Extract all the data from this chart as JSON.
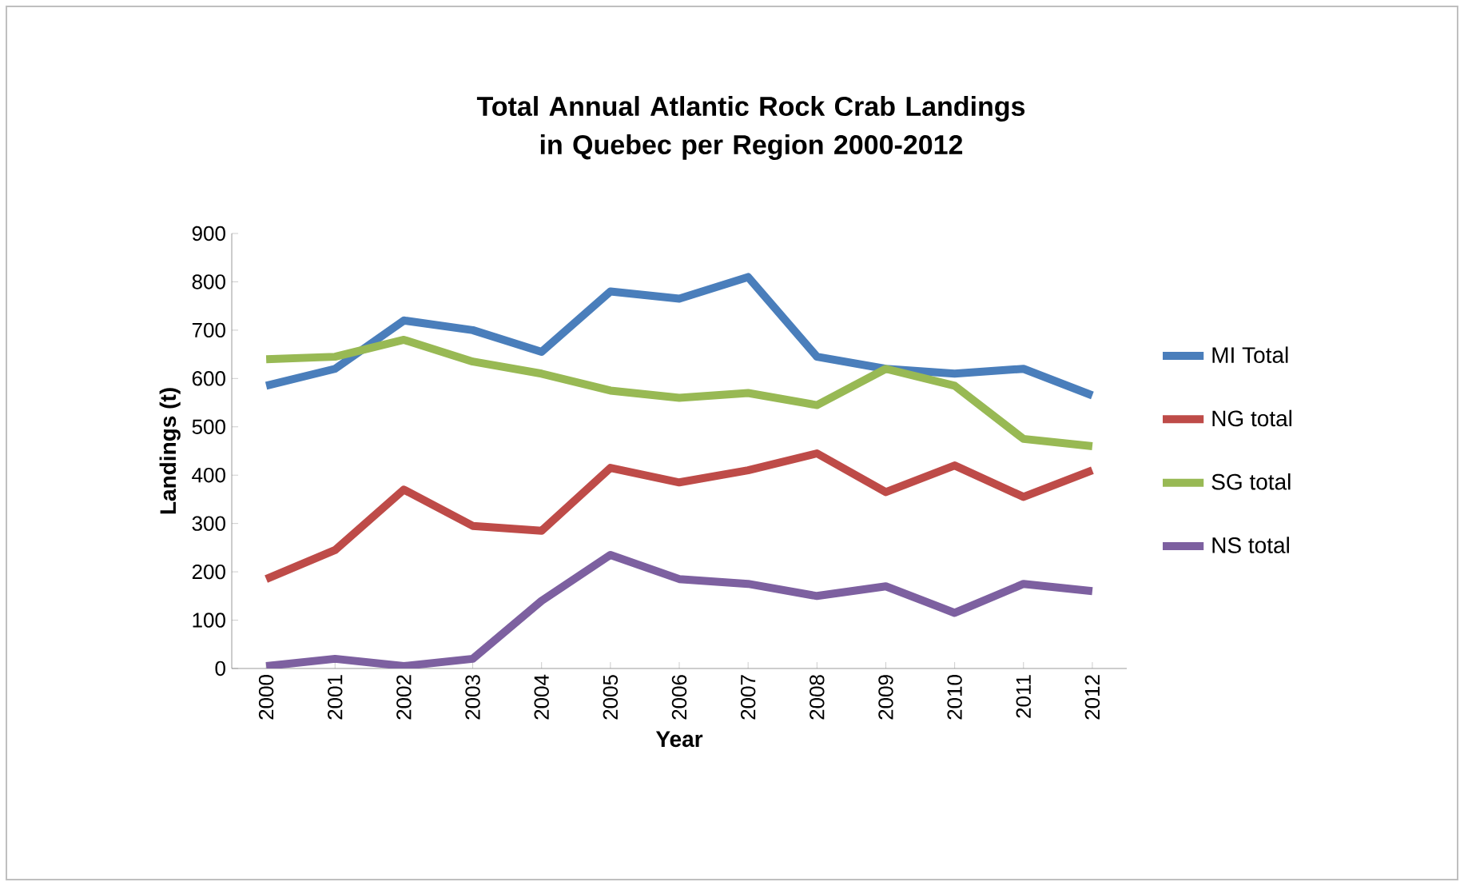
{
  "chart_data": {
    "type": "line",
    "title": "Total Annual Atlantic Rock Crab Landings in Quebec per Region 2000-2012",
    "xlabel": "Year",
    "ylabel": "Landings (t)",
    "categories": [
      "2000",
      "2001",
      "2002",
      "2003",
      "2004",
      "2005",
      "2006",
      "2007",
      "2008",
      "2009",
      "2010",
      "2011",
      "2012"
    ],
    "ylim": [
      0,
      900
    ],
    "yticks": [
      0,
      100,
      200,
      300,
      400,
      500,
      600,
      700,
      800,
      900
    ],
    "legend": "right",
    "grid": false,
    "marker": "none",
    "series": [
      {
        "name": "MI Total",
        "color": "#4a7ebb",
        "values": [
          585,
          620,
          720,
          700,
          655,
          780,
          765,
          810,
          645,
          620,
          610,
          620,
          565
        ]
      },
      {
        "name": "NG total",
        "color": "#be4b48",
        "values": [
          185,
          245,
          370,
          295,
          285,
          415,
          385,
          410,
          445,
          365,
          420,
          355,
          410
        ]
      },
      {
        "name": "SG total",
        "color": "#98b954",
        "values": [
          640,
          645,
          680,
          635,
          610,
          575,
          560,
          570,
          545,
          620,
          585,
          475,
          460
        ]
      },
      {
        "name": "NS total",
        "color": "#7d60a0",
        "values": [
          5,
          20,
          5,
          20,
          140,
          235,
          185,
          175,
          150,
          170,
          115,
          175,
          160
        ]
      }
    ]
  }
}
